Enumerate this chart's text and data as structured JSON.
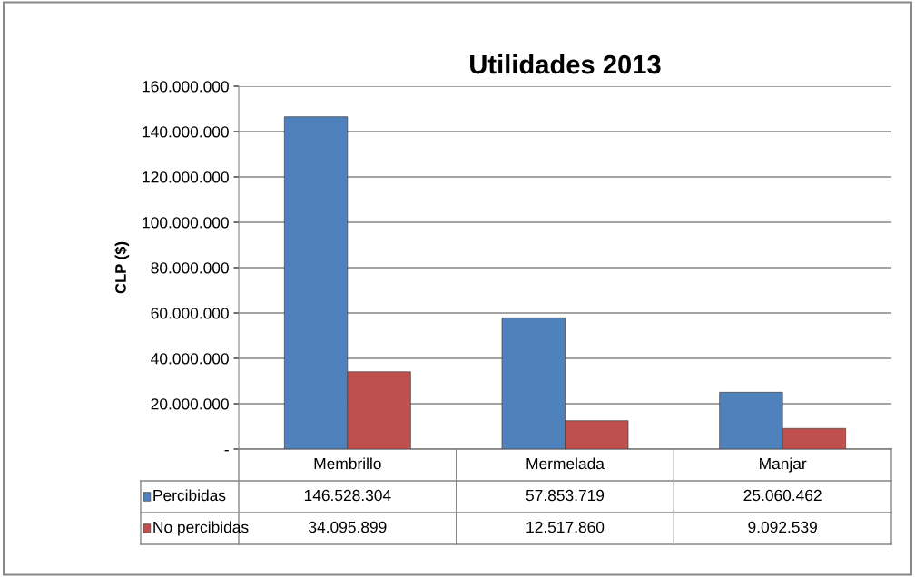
{
  "chart_data": {
    "type": "bar",
    "title": "Utilidades 2013",
    "ylabel": "CLP ($)",
    "categories": [
      "Membrillo",
      "Mermelada",
      "Manjar"
    ],
    "series": [
      {
        "name": "Percibidas",
        "color": "#4f81bd",
        "values": [
          146528304,
          57853719,
          25060462
        ],
        "value_labels": [
          "146.528.304",
          "57.853.719",
          "25.060.462"
        ]
      },
      {
        "name": "No percibidas",
        "color": "#c0504d",
        "values": [
          34095899,
          12517860,
          9092539
        ],
        "value_labels": [
          "34.095.899",
          "12.517.860",
          "9.092.539"
        ]
      }
    ],
    "ylim": [
      0,
      160000000
    ],
    "yticks": [
      {
        "value": 0,
        "label": "-"
      },
      {
        "value": 20000000,
        "label": "20.000.000"
      },
      {
        "value": 40000000,
        "label": "40.000.000"
      },
      {
        "value": 60000000,
        "label": "60.000.000"
      },
      {
        "value": 80000000,
        "label": "80.000.000"
      },
      {
        "value": 100000000,
        "label": "100.000.000"
      },
      {
        "value": 120000000,
        "label": "120.000.000"
      },
      {
        "value": 140000000,
        "label": "140.000.000"
      },
      {
        "value": 160000000,
        "label": "160.000.000"
      }
    ],
    "grid": "y",
    "legend": "bottom"
  }
}
